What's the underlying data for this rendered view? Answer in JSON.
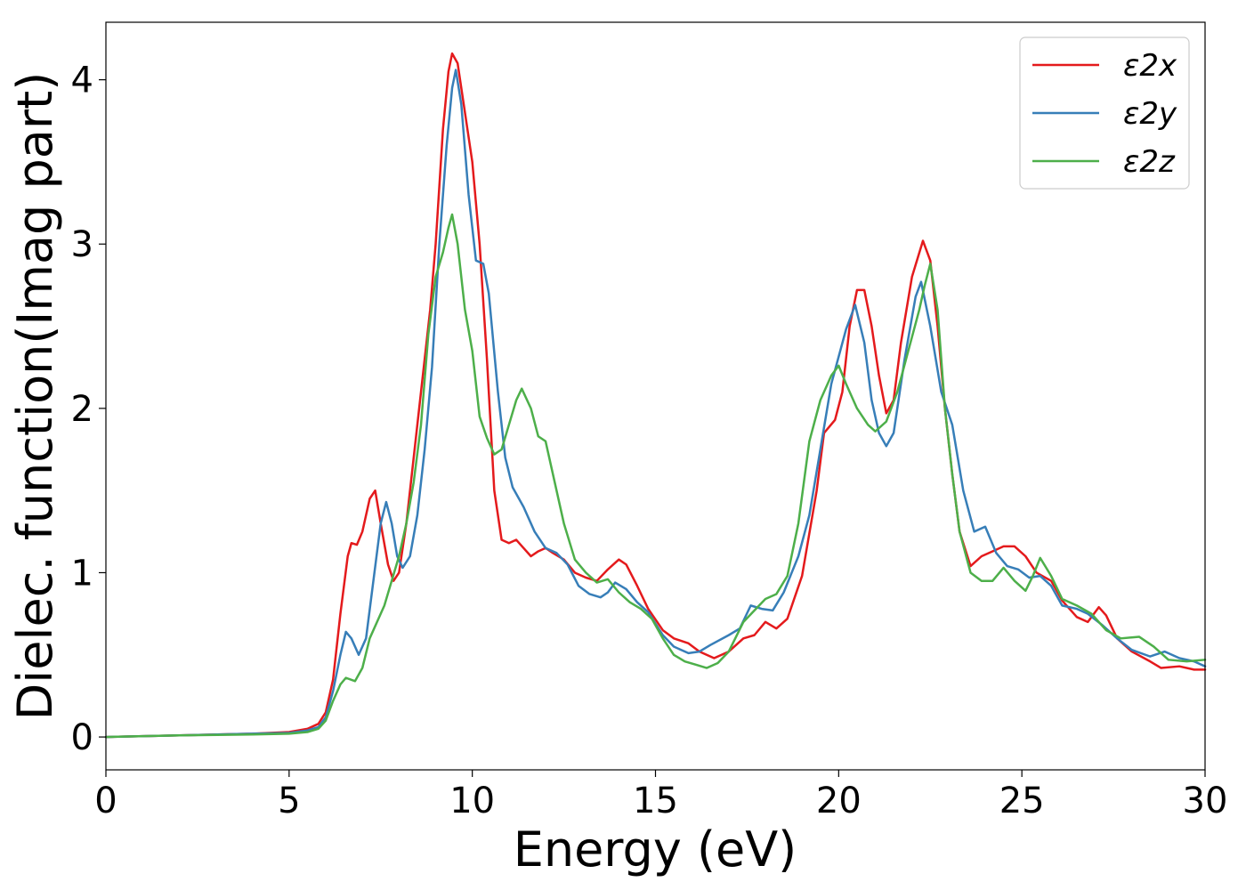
{
  "chart_data": {
    "type": "line",
    "xlabel": "Energy (eV)",
    "ylabel": "Dielec. function(Imag part)",
    "xlim": [
      0,
      30
    ],
    "ylim": [
      -0.2,
      4.35
    ],
    "xticks": [
      0,
      5,
      10,
      15,
      20,
      25,
      30
    ],
    "yticks": [
      0,
      1,
      2,
      3,
      4
    ],
    "grid": false,
    "legend_position": "top-right",
    "series": [
      {
        "name": "ε2x",
        "color": "#e41a1c",
        "points": [
          [
            0,
            0
          ],
          [
            2,
            0.01
          ],
          [
            4,
            0.02
          ],
          [
            5,
            0.03
          ],
          [
            5.5,
            0.05
          ],
          [
            5.8,
            0.08
          ],
          [
            6,
            0.15
          ],
          [
            6.2,
            0.35
          ],
          [
            6.4,
            0.75
          ],
          [
            6.6,
            1.1
          ],
          [
            6.7,
            1.18
          ],
          [
            6.85,
            1.17
          ],
          [
            7,
            1.25
          ],
          [
            7.2,
            1.45
          ],
          [
            7.35,
            1.5
          ],
          [
            7.5,
            1.3
          ],
          [
            7.7,
            1.05
          ],
          [
            7.85,
            0.95
          ],
          [
            8,
            1.0
          ],
          [
            8.2,
            1.3
          ],
          [
            8.4,
            1.7
          ],
          [
            8.6,
            2.1
          ],
          [
            8.85,
            2.6
          ],
          [
            9,
            3.0
          ],
          [
            9.2,
            3.7
          ],
          [
            9.35,
            4.05
          ],
          [
            9.45,
            4.16
          ],
          [
            9.6,
            4.1
          ],
          [
            9.8,
            3.8
          ],
          [
            10,
            3.5
          ],
          [
            10.2,
            3.0
          ],
          [
            10.4,
            2.3
          ],
          [
            10.6,
            1.5
          ],
          [
            10.8,
            1.2
          ],
          [
            11,
            1.18
          ],
          [
            11.2,
            1.2
          ],
          [
            11.4,
            1.15
          ],
          [
            11.6,
            1.1
          ],
          [
            11.8,
            1.13
          ],
          [
            12,
            1.15
          ],
          [
            12.2,
            1.12
          ],
          [
            12.5,
            1.08
          ],
          [
            12.8,
            1.0
          ],
          [
            13.1,
            0.97
          ],
          [
            13.4,
            0.95
          ],
          [
            13.7,
            1.02
          ],
          [
            14,
            1.08
          ],
          [
            14.2,
            1.05
          ],
          [
            14.5,
            0.92
          ],
          [
            14.8,
            0.78
          ],
          [
            15.2,
            0.65
          ],
          [
            15.5,
            0.6
          ],
          [
            15.9,
            0.57
          ],
          [
            16.2,
            0.52
          ],
          [
            16.6,
            0.48
          ],
          [
            17,
            0.52
          ],
          [
            17.4,
            0.6
          ],
          [
            17.7,
            0.62
          ],
          [
            18,
            0.7
          ],
          [
            18.3,
            0.66
          ],
          [
            18.6,
            0.72
          ],
          [
            19,
            0.98
          ],
          [
            19.4,
            1.5
          ],
          [
            19.6,
            1.85
          ],
          [
            19.9,
            1.93
          ],
          [
            20.1,
            2.1
          ],
          [
            20.3,
            2.5
          ],
          [
            20.5,
            2.72
          ],
          [
            20.7,
            2.72
          ],
          [
            20.9,
            2.5
          ],
          [
            21.1,
            2.2
          ],
          [
            21.3,
            1.97
          ],
          [
            21.5,
            2.05
          ],
          [
            21.7,
            2.4
          ],
          [
            22,
            2.8
          ],
          [
            22.3,
            3.02
          ],
          [
            22.5,
            2.9
          ],
          [
            22.7,
            2.5
          ],
          [
            22.9,
            2.0
          ],
          [
            23.1,
            1.6
          ],
          [
            23.3,
            1.25
          ],
          [
            23.6,
            1.04
          ],
          [
            23.9,
            1.1
          ],
          [
            24.2,
            1.13
          ],
          [
            24.5,
            1.16
          ],
          [
            24.8,
            1.16
          ],
          [
            25.1,
            1.1
          ],
          [
            25.4,
            1.0
          ],
          [
            25.8,
            0.95
          ],
          [
            26.1,
            0.83
          ],
          [
            26.5,
            0.73
          ],
          [
            26.8,
            0.7
          ],
          [
            27.1,
            0.79
          ],
          [
            27.3,
            0.74
          ],
          [
            27.6,
            0.6
          ],
          [
            28,
            0.52
          ],
          [
            28.5,
            0.46
          ],
          [
            28.8,
            0.42
          ],
          [
            29.3,
            0.43
          ],
          [
            29.7,
            0.41
          ],
          [
            30,
            0.41
          ]
        ]
      },
      {
        "name": "ε2y",
        "color": "#377eb8",
        "points": [
          [
            0,
            0
          ],
          [
            2,
            0.01
          ],
          [
            4,
            0.02
          ],
          [
            5,
            0.025
          ],
          [
            5.5,
            0.04
          ],
          [
            5.8,
            0.06
          ],
          [
            6,
            0.12
          ],
          [
            6.2,
            0.28
          ],
          [
            6.4,
            0.5
          ],
          [
            6.55,
            0.64
          ],
          [
            6.7,
            0.6
          ],
          [
            6.9,
            0.5
          ],
          [
            7.1,
            0.6
          ],
          [
            7.3,
            0.95
          ],
          [
            7.5,
            1.3
          ],
          [
            7.65,
            1.43
          ],
          [
            7.8,
            1.3
          ],
          [
            7.95,
            1.1
          ],
          [
            8.1,
            1.03
          ],
          [
            8.3,
            1.1
          ],
          [
            8.5,
            1.35
          ],
          [
            8.7,
            1.75
          ],
          [
            8.9,
            2.25
          ],
          [
            9.1,
            3.0
          ],
          [
            9.3,
            3.6
          ],
          [
            9.45,
            3.95
          ],
          [
            9.55,
            4.06
          ],
          [
            9.7,
            3.85
          ],
          [
            9.9,
            3.3
          ],
          [
            10.1,
            2.9
          ],
          [
            10.3,
            2.88
          ],
          [
            10.45,
            2.7
          ],
          [
            10.7,
            2.1
          ],
          [
            10.9,
            1.7
          ],
          [
            11.1,
            1.52
          ],
          [
            11.4,
            1.4
          ],
          [
            11.7,
            1.25
          ],
          [
            12,
            1.15
          ],
          [
            12.3,
            1.12
          ],
          [
            12.6,
            1.05
          ],
          [
            12.9,
            0.92
          ],
          [
            13.2,
            0.87
          ],
          [
            13.5,
            0.85
          ],
          [
            13.7,
            0.88
          ],
          [
            13.9,
            0.94
          ],
          [
            14.2,
            0.9
          ],
          [
            14.5,
            0.82
          ],
          [
            14.8,
            0.76
          ],
          [
            15.2,
            0.62
          ],
          [
            15.5,
            0.55
          ],
          [
            15.9,
            0.51
          ],
          [
            16.2,
            0.52
          ],
          [
            16.5,
            0.56
          ],
          [
            17,
            0.62
          ],
          [
            17.3,
            0.66
          ],
          [
            17.6,
            0.8
          ],
          [
            17.9,
            0.78
          ],
          [
            18.2,
            0.77
          ],
          [
            18.5,
            0.88
          ],
          [
            18.9,
            1.1
          ],
          [
            19.2,
            1.35
          ],
          [
            19.5,
            1.75
          ],
          [
            19.8,
            2.15
          ],
          [
            20.2,
            2.48
          ],
          [
            20.45,
            2.63
          ],
          [
            20.7,
            2.4
          ],
          [
            20.9,
            2.05
          ],
          [
            21.1,
            1.85
          ],
          [
            21.3,
            1.77
          ],
          [
            21.5,
            1.85
          ],
          [
            21.8,
            2.3
          ],
          [
            22.1,
            2.68
          ],
          [
            22.25,
            2.77
          ],
          [
            22.5,
            2.5
          ],
          [
            22.8,
            2.1
          ],
          [
            23.1,
            1.9
          ],
          [
            23.4,
            1.5
          ],
          [
            23.7,
            1.25
          ],
          [
            24,
            1.28
          ],
          [
            24.3,
            1.12
          ],
          [
            24.6,
            1.04
          ],
          [
            24.9,
            1.02
          ],
          [
            25.2,
            0.97
          ],
          [
            25.5,
            0.98
          ],
          [
            25.8,
            0.92
          ],
          [
            26.1,
            0.8
          ],
          [
            26.5,
            0.78
          ],
          [
            26.8,
            0.75
          ],
          [
            27.2,
            0.68
          ],
          [
            27.6,
            0.6
          ],
          [
            28,
            0.53
          ],
          [
            28.5,
            0.49
          ],
          [
            28.9,
            0.52
          ],
          [
            29.3,
            0.48
          ],
          [
            29.7,
            0.46
          ],
          [
            30,
            0.43
          ]
        ]
      },
      {
        "name": "ε2z",
        "color": "#4daf4a",
        "points": [
          [
            0,
            0
          ],
          [
            2,
            0.01
          ],
          [
            4,
            0.015
          ],
          [
            5,
            0.02
          ],
          [
            5.5,
            0.03
          ],
          [
            5.8,
            0.05
          ],
          [
            6,
            0.1
          ],
          [
            6.2,
            0.22
          ],
          [
            6.4,
            0.32
          ],
          [
            6.55,
            0.36
          ],
          [
            6.8,
            0.34
          ],
          [
            7,
            0.42
          ],
          [
            7.2,
            0.6
          ],
          [
            7.4,
            0.7
          ],
          [
            7.6,
            0.8
          ],
          [
            7.8,
            0.95
          ],
          [
            8,
            1.1
          ],
          [
            8.2,
            1.3
          ],
          [
            8.4,
            1.55
          ],
          [
            8.6,
            1.9
          ],
          [
            8.8,
            2.45
          ],
          [
            9,
            2.8
          ],
          [
            9.2,
            2.95
          ],
          [
            9.35,
            3.1
          ],
          [
            9.45,
            3.18
          ],
          [
            9.6,
            3.0
          ],
          [
            9.8,
            2.6
          ],
          [
            10,
            2.35
          ],
          [
            10.2,
            1.95
          ],
          [
            10.4,
            1.82
          ],
          [
            10.6,
            1.72
          ],
          [
            10.8,
            1.75
          ],
          [
            11,
            1.9
          ],
          [
            11.2,
            2.05
          ],
          [
            11.35,
            2.12
          ],
          [
            11.6,
            2.0
          ],
          [
            11.8,
            1.83
          ],
          [
            12,
            1.8
          ],
          [
            12.2,
            1.6
          ],
          [
            12.5,
            1.3
          ],
          [
            12.8,
            1.08
          ],
          [
            13.1,
            1.0
          ],
          [
            13.4,
            0.94
          ],
          [
            13.7,
            0.96
          ],
          [
            14,
            0.88
          ],
          [
            14.3,
            0.82
          ],
          [
            14.6,
            0.78
          ],
          [
            14.9,
            0.72
          ],
          [
            15.2,
            0.6
          ],
          [
            15.5,
            0.5
          ],
          [
            15.8,
            0.46
          ],
          [
            16.1,
            0.44
          ],
          [
            16.4,
            0.42
          ],
          [
            16.7,
            0.45
          ],
          [
            17,
            0.52
          ],
          [
            17.4,
            0.7
          ],
          [
            17.7,
            0.77
          ],
          [
            18,
            0.84
          ],
          [
            18.3,
            0.87
          ],
          [
            18.6,
            0.98
          ],
          [
            18.9,
            1.3
          ],
          [
            19.2,
            1.8
          ],
          [
            19.5,
            2.05
          ],
          [
            19.8,
            2.2
          ],
          [
            20,
            2.26
          ],
          [
            20.2,
            2.15
          ],
          [
            20.5,
            2.0
          ],
          [
            20.8,
            1.9
          ],
          [
            21,
            1.86
          ],
          [
            21.3,
            1.92
          ],
          [
            21.6,
            2.1
          ],
          [
            21.9,
            2.35
          ],
          [
            22.2,
            2.6
          ],
          [
            22.35,
            2.75
          ],
          [
            22.5,
            2.88
          ],
          [
            22.7,
            2.6
          ],
          [
            22.9,
            2.0
          ],
          [
            23.1,
            1.6
          ],
          [
            23.3,
            1.25
          ],
          [
            23.6,
            1.0
          ],
          [
            23.9,
            0.95
          ],
          [
            24.2,
            0.95
          ],
          [
            24.5,
            1.03
          ],
          [
            24.8,
            0.95
          ],
          [
            25.1,
            0.89
          ],
          [
            25.3,
            0.98
          ],
          [
            25.5,
            1.09
          ],
          [
            25.8,
            0.98
          ],
          [
            26.1,
            0.84
          ],
          [
            26.5,
            0.8
          ],
          [
            26.9,
            0.75
          ],
          [
            27.3,
            0.65
          ],
          [
            27.7,
            0.6
          ],
          [
            28.2,
            0.61
          ],
          [
            28.6,
            0.55
          ],
          [
            29,
            0.47
          ],
          [
            29.5,
            0.46
          ],
          [
            30,
            0.47
          ]
        ]
      }
    ]
  }
}
